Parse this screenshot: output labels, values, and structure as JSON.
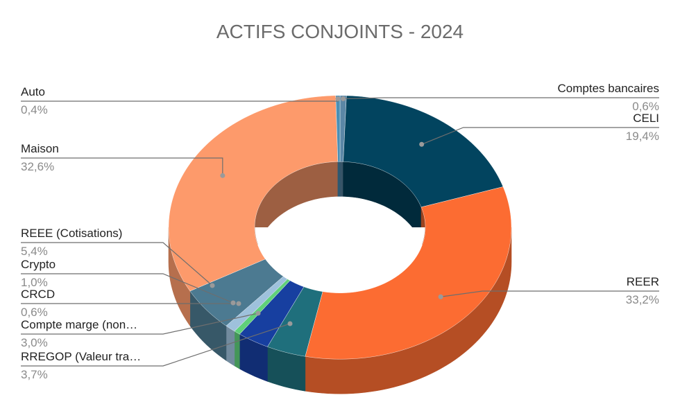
{
  "chart_data": {
    "type": "pie",
    "variant": "3d-donut",
    "title": "ACTIFS CONJOINTS - 2024",
    "legend": "none",
    "slices": [
      {
        "name": "Comptes bancaires",
        "value": 0.6,
        "label": "0,6%",
        "color": "#5b87a6"
      },
      {
        "name": "CELI",
        "value": 19.4,
        "label": "19,4%",
        "color": "#02445f"
      },
      {
        "name": "REER",
        "value": 33.2,
        "label": "33,2%",
        "color": "#fc6c32"
      },
      {
        "name": "RREGOP (Valeur tra…",
        "value": 3.7,
        "label": "3,7%",
        "color": "#1f6f7c"
      },
      {
        "name": "Compte marge (non…",
        "value": 3.0,
        "label": "3,0%",
        "color": "#173fa0"
      },
      {
        "name": "CRCD",
        "value": 0.6,
        "label": "0,6%",
        "color": "#5fd07a"
      },
      {
        "name": "Crypto",
        "value": 1.0,
        "label": "1,0%",
        "color": "#9ec1dc"
      },
      {
        "name": "REEE (Cotisations)",
        "value": 5.4,
        "label": "5,4%",
        "color": "#4c7a91"
      },
      {
        "name": "Maison",
        "value": 32.6,
        "label": "32,6%",
        "color": "#fd9a6b"
      },
      {
        "name": "Auto",
        "value": 0.4,
        "label": "0,4%",
        "color": "#4a8fb5"
      }
    ]
  }
}
